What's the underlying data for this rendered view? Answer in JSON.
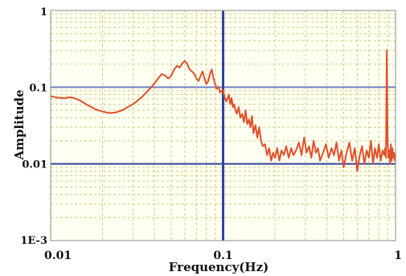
{
  "chart_data": {
    "type": "line",
    "title": "",
    "xlabel": "Frequency(Hz)",
    "ylabel": "Amplitude",
    "xscale": "log",
    "yscale": "log",
    "xlim": [
      0.01,
      1
    ],
    "ylim": [
      0.001,
      1
    ],
    "grid": true,
    "x_ticks": [
      {
        "value": 0.01,
        "label": "0.01"
      },
      {
        "value": 0.1,
        "label": "0.1"
      },
      {
        "value": 1,
        "label": "1"
      }
    ],
    "y_ticks": [
      {
        "value": 1,
        "label": "1"
      },
      {
        "value": 0.1,
        "label": "0.1"
      },
      {
        "value": 0.01,
        "label": "0.01"
      },
      {
        "value": 0.001,
        "label": "1E-3"
      }
    ],
    "reference_lines": [
      {
        "orientation": "horizontal",
        "value": 0.1
      },
      {
        "orientation": "horizontal",
        "value": 0.01
      },
      {
        "orientation": "vertical",
        "value": 0.1
      }
    ],
    "series": [
      {
        "x": [
          0.01,
          0.011,
          0.012,
          0.013,
          0.014,
          0.015,
          0.016,
          0.017,
          0.018,
          0.02,
          0.022,
          0.024,
          0.026,
          0.028,
          0.03,
          0.032,
          0.034,
          0.036,
          0.038,
          0.04,
          0.042,
          0.044,
          0.046,
          0.048,
          0.05,
          0.052,
          0.054,
          0.056,
          0.058,
          0.06,
          0.062,
          0.064,
          0.066,
          0.068,
          0.07,
          0.072,
          0.074,
          0.076,
          0.078,
          0.08,
          0.082,
          0.084,
          0.086,
          0.088,
          0.09,
          0.092,
          0.094,
          0.096,
          0.098,
          0.1,
          0.102,
          0.104,
          0.106,
          0.108,
          0.11,
          0.112,
          0.114,
          0.116,
          0.118,
          0.12,
          0.123,
          0.126,
          0.129,
          0.132,
          0.135,
          0.138,
          0.141,
          0.144,
          0.147,
          0.15,
          0.154,
          0.158,
          0.162,
          0.166,
          0.17,
          0.175,
          0.18,
          0.185,
          0.19,
          0.195,
          0.2,
          0.206,
          0.212,
          0.218,
          0.225,
          0.232,
          0.24,
          0.248,
          0.256,
          0.265,
          0.275,
          0.285,
          0.295,
          0.305,
          0.315,
          0.325,
          0.335,
          0.345,
          0.355,
          0.365,
          0.38,
          0.395,
          0.41,
          0.425,
          0.44,
          0.455,
          0.47,
          0.485,
          0.5,
          0.52,
          0.54,
          0.56,
          0.58,
          0.6,
          0.62,
          0.64,
          0.66,
          0.68,
          0.7,
          0.72,
          0.74,
          0.76,
          0.78,
          0.8,
          0.82,
          0.84,
          0.86,
          0.87,
          0.88,
          0.89,
          0.9,
          0.91,
          0.92,
          0.93,
          0.94,
          0.95,
          0.96,
          0.97,
          0.98,
          0.99,
          1.0
        ],
        "y": [
          0.076,
          0.073,
          0.072,
          0.074,
          0.071,
          0.066,
          0.06,
          0.056,
          0.052,
          0.048,
          0.046,
          0.047,
          0.05,
          0.055,
          0.06,
          0.067,
          0.075,
          0.086,
          0.098,
          0.112,
          0.13,
          0.148,
          0.142,
          0.13,
          0.14,
          0.17,
          0.19,
          0.18,
          0.205,
          0.22,
          0.2,
          0.17,
          0.16,
          0.15,
          0.13,
          0.12,
          0.14,
          0.16,
          0.13,
          0.11,
          0.12,
          0.15,
          0.17,
          0.13,
          0.11,
          0.095,
          0.1,
          0.085,
          0.09,
          0.092,
          0.075,
          0.065,
          0.07,
          0.08,
          0.06,
          0.072,
          0.055,
          0.06,
          0.05,
          0.045,
          0.055,
          0.04,
          0.045,
          0.035,
          0.05,
          0.033,
          0.038,
          0.03,
          0.042,
          0.025,
          0.032,
          0.022,
          0.03,
          0.02,
          0.017,
          0.018,
          0.013,
          0.016,
          0.011,
          0.014,
          0.012,
          0.016,
          0.011,
          0.015,
          0.013,
          0.017,
          0.012,
          0.016,
          0.013,
          0.015,
          0.019,
          0.013,
          0.022,
          0.014,
          0.017,
          0.012,
          0.02,
          0.014,
          0.016,
          0.011,
          0.014,
          0.018,
          0.012,
          0.016,
          0.013,
          0.019,
          0.011,
          0.015,
          0.009,
          0.014,
          0.019,
          0.011,
          0.016,
          0.008,
          0.013,
          0.017,
          0.01,
          0.015,
          0.012,
          0.02,
          0.01,
          0.016,
          0.012,
          0.018,
          0.011,
          0.015,
          0.013,
          0.016,
          0.012,
          0.3,
          0.02,
          0.012,
          0.015,
          0.01,
          0.018,
          0.011,
          0.016,
          0.012,
          0.014,
          0.011,
          0.013
        ]
      }
    ],
    "colors": {
      "series_line": "#e0502a",
      "reference_line": "#30449a",
      "reference_line_faint": "#6f80c4",
      "grid_line": "#c9cf7a",
      "plot_background": "#fffff2",
      "outer_frame": "#888888"
    }
  }
}
